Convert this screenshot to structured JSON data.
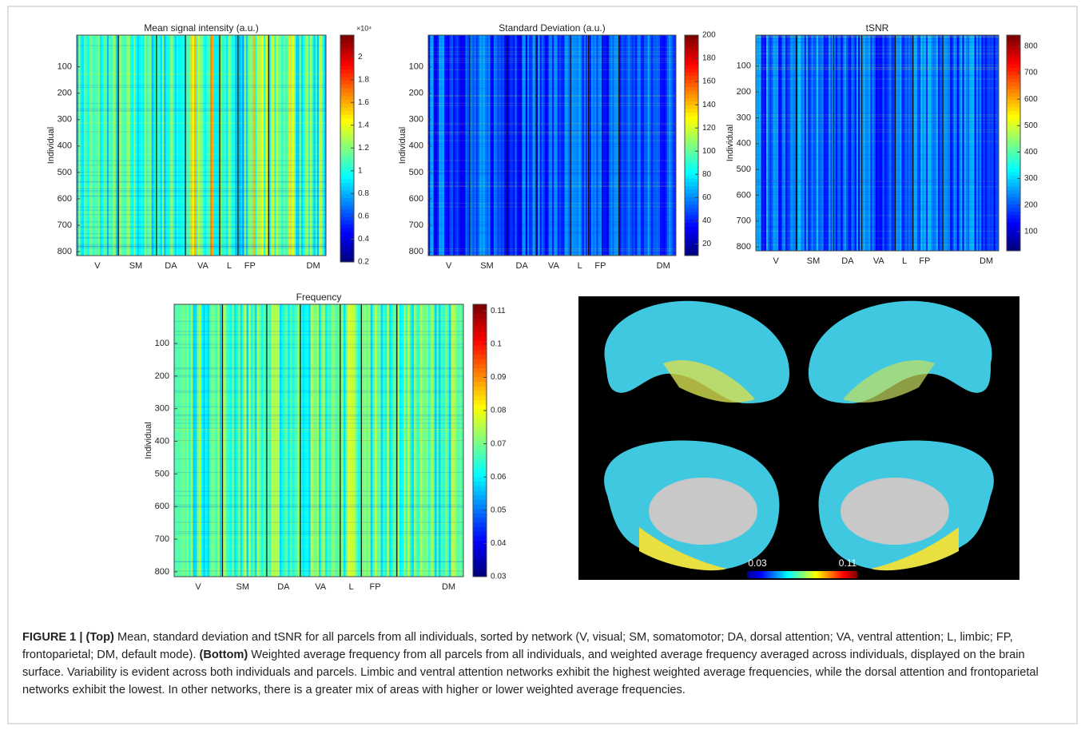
{
  "figure": {
    "panels": [
      {
        "title": "Mean signal intensity (a.u.)",
        "ylabel": "Individual",
        "ylim": [
          -20,
          815
        ],
        "yticks": [
          100,
          200,
          300,
          400,
          500,
          600,
          700,
          800
        ],
        "categories": [
          "V",
          "SM",
          "DA",
          "VA",
          "L",
          "FP",
          "DM"
        ],
        "colorbar": {
          "lim": [
            0.2,
            2.19
          ],
          "ticks": [
            0.2,
            0.4,
            0.6,
            0.8,
            1,
            1.2,
            1.4,
            1.6,
            1.8,
            2
          ],
          "exponent": "×10⁴"
        }
      },
      {
        "title": "Standard Deviation (a.u.)",
        "ylabel": "Individual",
        "ylim": [
          -20,
          815
        ],
        "yticks": [
          100,
          200,
          300,
          400,
          500,
          600,
          700,
          800
        ],
        "categories": [
          "V",
          "SM",
          "DA",
          "VA",
          "L",
          "FP",
          "DM"
        ],
        "colorbar": {
          "lim": [
            10,
            200
          ],
          "ticks": [
            20,
            40,
            60,
            80,
            100,
            120,
            140,
            160,
            180,
            200
          ]
        }
      },
      {
        "title": "tSNR",
        "ylabel": "Individual",
        "ylim": [
          -20,
          815
        ],
        "yticks": [
          100,
          200,
          300,
          400,
          500,
          600,
          700,
          800
        ],
        "categories": [
          "V",
          "SM",
          "DA",
          "VA",
          "L",
          "FP",
          "DM"
        ],
        "colorbar": {
          "lim": [
            27,
            842
          ],
          "ticks": [
            100,
            200,
            300,
            400,
            500,
            600,
            700,
            800
          ]
        }
      },
      {
        "title": "Frequency",
        "ylabel": "Individual",
        "ylim": [
          -20,
          815
        ],
        "yticks": [
          100,
          200,
          300,
          400,
          500,
          600,
          700,
          800
        ],
        "categories": [
          "V",
          "SM",
          "DA",
          "VA",
          "L",
          "FP",
          "DM"
        ],
        "colorbar": {
          "lim": [
            0.03,
            0.112
          ],
          "ticks": [
            0.03,
            0.04,
            0.05,
            0.06,
            0.07,
            0.08,
            0.09,
            0.1,
            0.11
          ]
        }
      }
    ],
    "brain_colorbar": {
      "min_label": "0.03",
      "max_label": "0.11"
    },
    "caption": {
      "label": "FIGURE 1 | (Top)",
      "top_text": " Mean, standard deviation and tSNR for all parcels from all individuals, sorted by network (V, visual; SM, somatomotor; DA, dorsal attention; VA, ventral attention; L,  limbic; FP, frontoparietal; DM, default mode). ",
      "bottom_label": "(Bottom)",
      "bottom_text": " Weighted average frequency from all parcels from all individuals, and weighted average frequency averaged across individuals, displayed on the brain surface. Variability is evident across both individuals and parcels. Limbic and ventral attention networks exhibit the highest weighted average frequencies, while the dorsal attention and frontoparietal networks exhibit the lowest. In other networks, there is a greater mix of areas with higher or lower weighted average frequencies."
    }
  }
}
